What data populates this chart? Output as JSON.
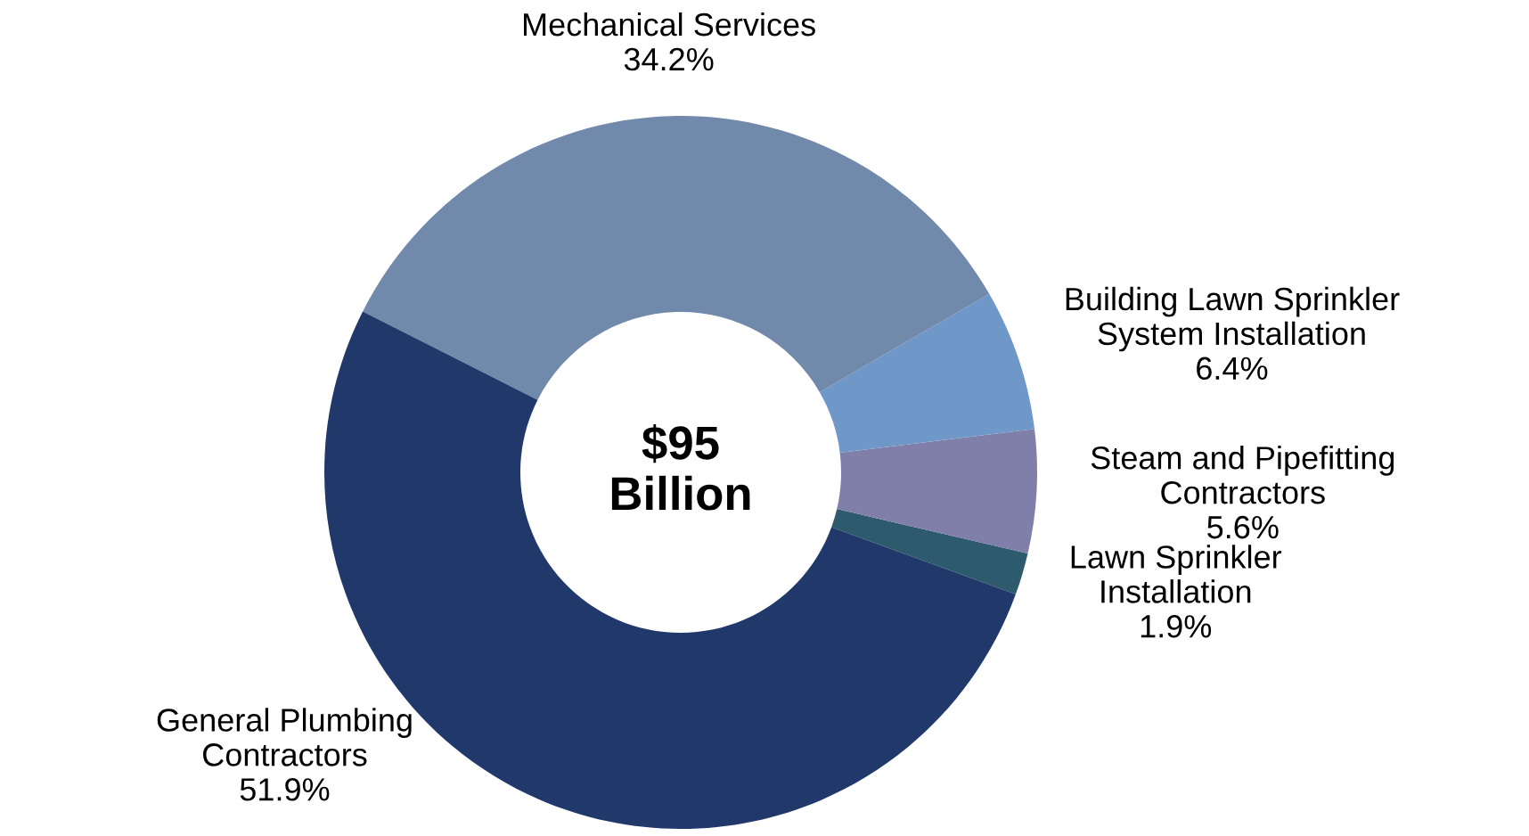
{
  "chart_data": {
    "type": "donut",
    "categories": [
      "Lawn Sprinkler\nInstallation",
      "Steam and Pipefitting\nContractors",
      "Building Lawn Sprinkler\nSystem Installation",
      "Mechanical Services",
      "General Plumbing\nContractors"
    ],
    "values": [
      1.9,
      5.6,
      6.4,
      34.2,
      51.9
    ],
    "value_labels": [
      "1.9%",
      "5.6%",
      "6.4%",
      "34.2%",
      "51.9%"
    ],
    "colors": [
      "#2e5a6e",
      "#7f7faa",
      "#6f98c8",
      "#7189aa",
      "#20386a"
    ],
    "annotations": [
      "$95\nBillion"
    ],
    "legend": false
  }
}
